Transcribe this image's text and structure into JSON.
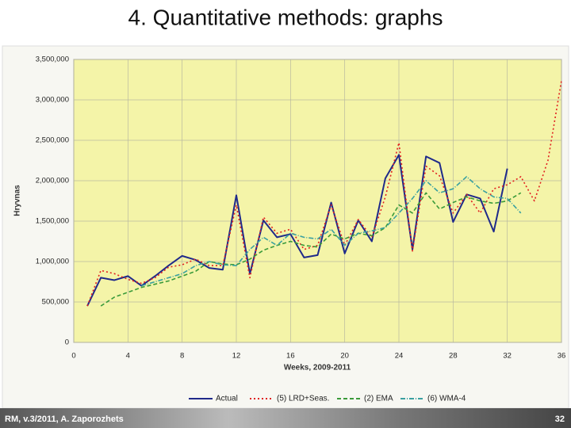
{
  "chart_data": {
    "type": "line",
    "title": "4. Quantitative methods: graphs",
    "xlabel": "Weeks, 2009-2011",
    "ylabel": "Hryvnas",
    "x": [
      1,
      2,
      3,
      4,
      5,
      6,
      7,
      8,
      9,
      10,
      11,
      12,
      13,
      14,
      15,
      16,
      17,
      18,
      19,
      20,
      21,
      22,
      23,
      24,
      25,
      26,
      27,
      28,
      29,
      30,
      31,
      32,
      33,
      34,
      35,
      36
    ],
    "xlim": [
      0,
      36
    ],
    "xticks": [
      0,
      4,
      8,
      12,
      16,
      20,
      24,
      28,
      32,
      36
    ],
    "ylim": [
      0,
      3500000
    ],
    "yticks": [
      0,
      {
        "value": 500000,
        "label": "500,000"
      },
      {
        "value": 1000000,
        "label": "1,000,000"
      },
      {
        "value": 1500000,
        "label": "1,500,000"
      },
      {
        "value": 2000000,
        "label": "2,000,000"
      },
      {
        "value": 2500000,
        "label": "2,500,000"
      },
      {
        "value": 3000000,
        "label": "3,000,000"
      },
      {
        "value": 3500000,
        "label": "3,500,000"
      }
    ],
    "grid": true,
    "legend": "bottom",
    "series": [
      {
        "name": "Actual",
        "color": "#1f2a8a",
        "dash": "",
        "values": [
          450000,
          800000,
          770000,
          820000,
          700000,
          820000,
          950000,
          1070000,
          1020000,
          920000,
          900000,
          1820000,
          850000,
          1510000,
          1300000,
          1340000,
          1050000,
          1080000,
          1730000,
          1100000,
          1510000,
          1250000,
          2030000,
          2320000,
          1150000,
          2300000,
          2220000,
          1490000,
          1830000,
          1780000,
          1370000,
          2150000,
          null,
          null,
          null,
          null
        ]
      },
      {
        "name": "(5) LRD+Seas.",
        "color": "#e02020",
        "dash": "2 3",
        "values": [
          450000,
          890000,
          850000,
          780000,
          730000,
          800000,
          930000,
          960000,
          1030000,
          950000,
          950000,
          1700000,
          800000,
          1550000,
          1350000,
          1400000,
          1150000,
          1200000,
          1700000,
          1200000,
          1520000,
          1300000,
          1800000,
          2470000,
          1130000,
          2180000,
          2060000,
          1600000,
          1830000,
          1600000,
          1900000,
          1950000,
          2050000,
          1750000,
          2250000,
          3240000
        ]
      },
      {
        "name": "(2) EMA",
        "color": "#3a9a3a",
        "dash": "5 3",
        "values": [
          null,
          450000,
          560000,
          620000,
          680000,
          720000,
          760000,
          820000,
          880000,
          1000000,
          970000,
          960000,
          1030000,
          1140000,
          1200000,
          1250000,
          1200000,
          1180000,
          1340000,
          1280000,
          1350000,
          1320000,
          1420000,
          1700000,
          1600000,
          1850000,
          1650000,
          1730000,
          1800000,
          1750000,
          1720000,
          1750000,
          1850000,
          null,
          null,
          null
        ]
      },
      {
        "name": "(6) WMA-4",
        "color": "#3aa0a0",
        "dash": "6 2 1 2",
        "values": [
          null,
          null,
          null,
          null,
          700000,
          750000,
          800000,
          850000,
          950000,
          1000000,
          960000,
          950000,
          1150000,
          1300000,
          1200000,
          1350000,
          1300000,
          1280000,
          1400000,
          1200000,
          1350000,
          1380000,
          1420000,
          1600000,
          1780000,
          2000000,
          1850000,
          1900000,
          2050000,
          1900000,
          1800000,
          1780000,
          1600000,
          null,
          null,
          null
        ]
      }
    ]
  },
  "footer": {
    "text": "RM, v.3/2011, A. Zaporozhets",
    "page": "32"
  }
}
